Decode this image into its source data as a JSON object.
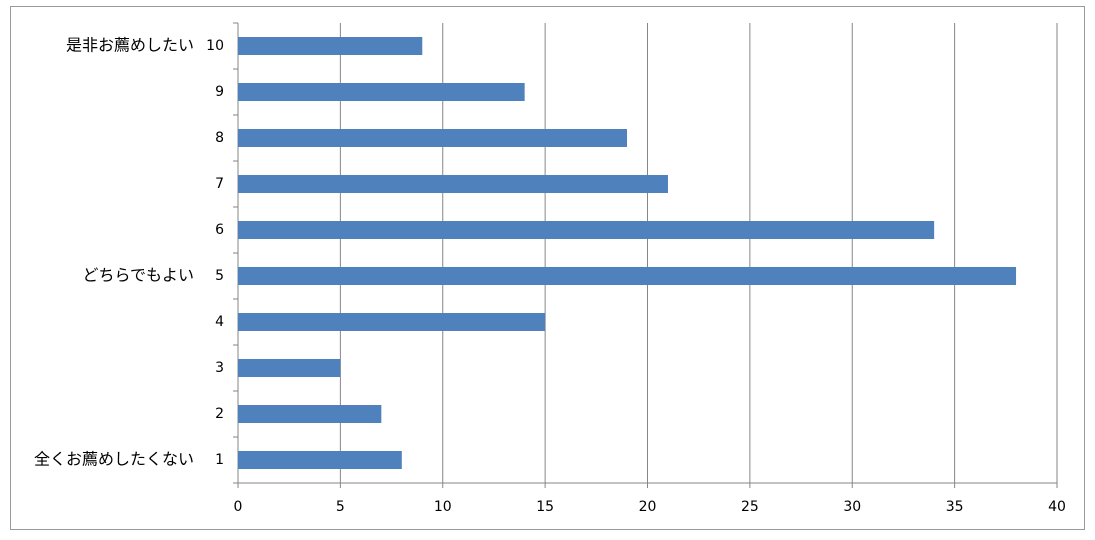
{
  "chart_data": {
    "type": "bar",
    "orientation": "horizontal",
    "categories": [
      "1",
      "2",
      "3",
      "4",
      "5",
      "6",
      "7",
      "8",
      "9",
      "10"
    ],
    "side_labels": [
      "全くお薦めしたくない",
      null,
      null,
      null,
      "どちらでもよい",
      null,
      null,
      null,
      null,
      "是非お薦めしたい"
    ],
    "values": [
      8,
      7,
      5,
      15,
      38,
      34,
      21,
      19,
      14,
      9
    ],
    "color": "#4f81bd",
    "xlim": [
      0,
      40
    ],
    "xticks": [
      0,
      5,
      10,
      15,
      20,
      25,
      30,
      35,
      40
    ],
    "grid": true
  }
}
